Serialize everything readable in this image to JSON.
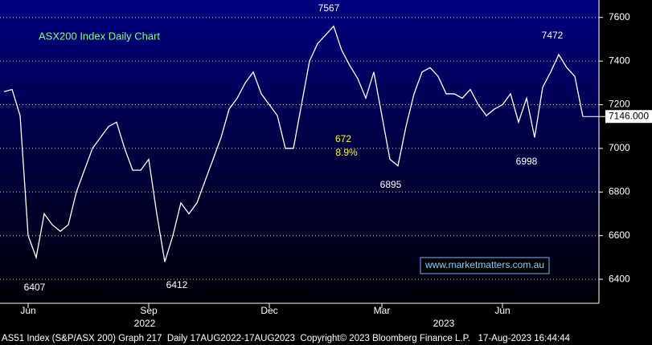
{
  "chart_data": {
    "type": "line",
    "title": "ASX200 Index Daily Chart",
    "categories": [
      null,
      null,
      null,
      "Jun",
      null,
      null,
      null,
      null,
      null,
      null,
      null,
      null,
      null,
      null,
      null,
      null,
      null,
      null,
      "Sep",
      null,
      null,
      null,
      null,
      null,
      null,
      null,
      null,
      null,
      null,
      null,
      null,
      null,
      null,
      "Dec",
      null,
      null,
      null,
      null,
      null,
      null,
      null,
      null,
      null,
      null,
      null,
      null,
      null,
      "Mar",
      null,
      null,
      null,
      null,
      null,
      null,
      null,
      null,
      null,
      null,
      null,
      null,
      null,
      null,
      "Jun",
      null,
      null,
      null,
      null,
      null,
      null,
      null,
      null,
      null,
      null
    ],
    "values": [
      7260,
      7270,
      7150,
      6600,
      6500,
      6700,
      6650,
      6620,
      6650,
      6800,
      6900,
      7000,
      7050,
      7100,
      7120,
      7000,
      6900,
      6900,
      6950,
      6700,
      6480,
      6600,
      6750,
      6700,
      6750,
      6850,
      6950,
      7050,
      7180,
      7230,
      7300,
      7350,
      7250,
      7200,
      7150,
      7000,
      7000,
      7200,
      7400,
      7480,
      7520,
      7560,
      7450,
      7380,
      7320,
      7230,
      7350,
      7150,
      6950,
      6920,
      7100,
      7250,
      7350,
      7370,
      7330,
      7250,
      7250,
      7230,
      7270,
      7200,
      7150,
      7180,
      7200,
      7250,
      7120,
      7230,
      7050,
      7280,
      7350,
      7430,
      7370,
      7330,
      7146
    ],
    "color": "#ffffff",
    "ylim": [
      6290,
      7680
    ],
    "yticks": [
      6400,
      6600,
      6800,
      7000,
      7200,
      7400,
      7600
    ],
    "grid": true,
    "x_groups": [
      "2022",
      "2023"
    ],
    "annotations": [
      "7567",
      "7472",
      "6407",
      "6412",
      "6895",
      "6998",
      "672",
      "8.9%"
    ],
    "last_label": "7146.000",
    "watermark": "www.marketmatters.com.au",
    "footer": "AS51 Index (S&P/ASX 200) Graph 217  Daily 17AUG2022-17AUG2023  Copyright© 2023 Bloomberg Finance L.P.   17-Aug-2023 16:44:44"
  }
}
